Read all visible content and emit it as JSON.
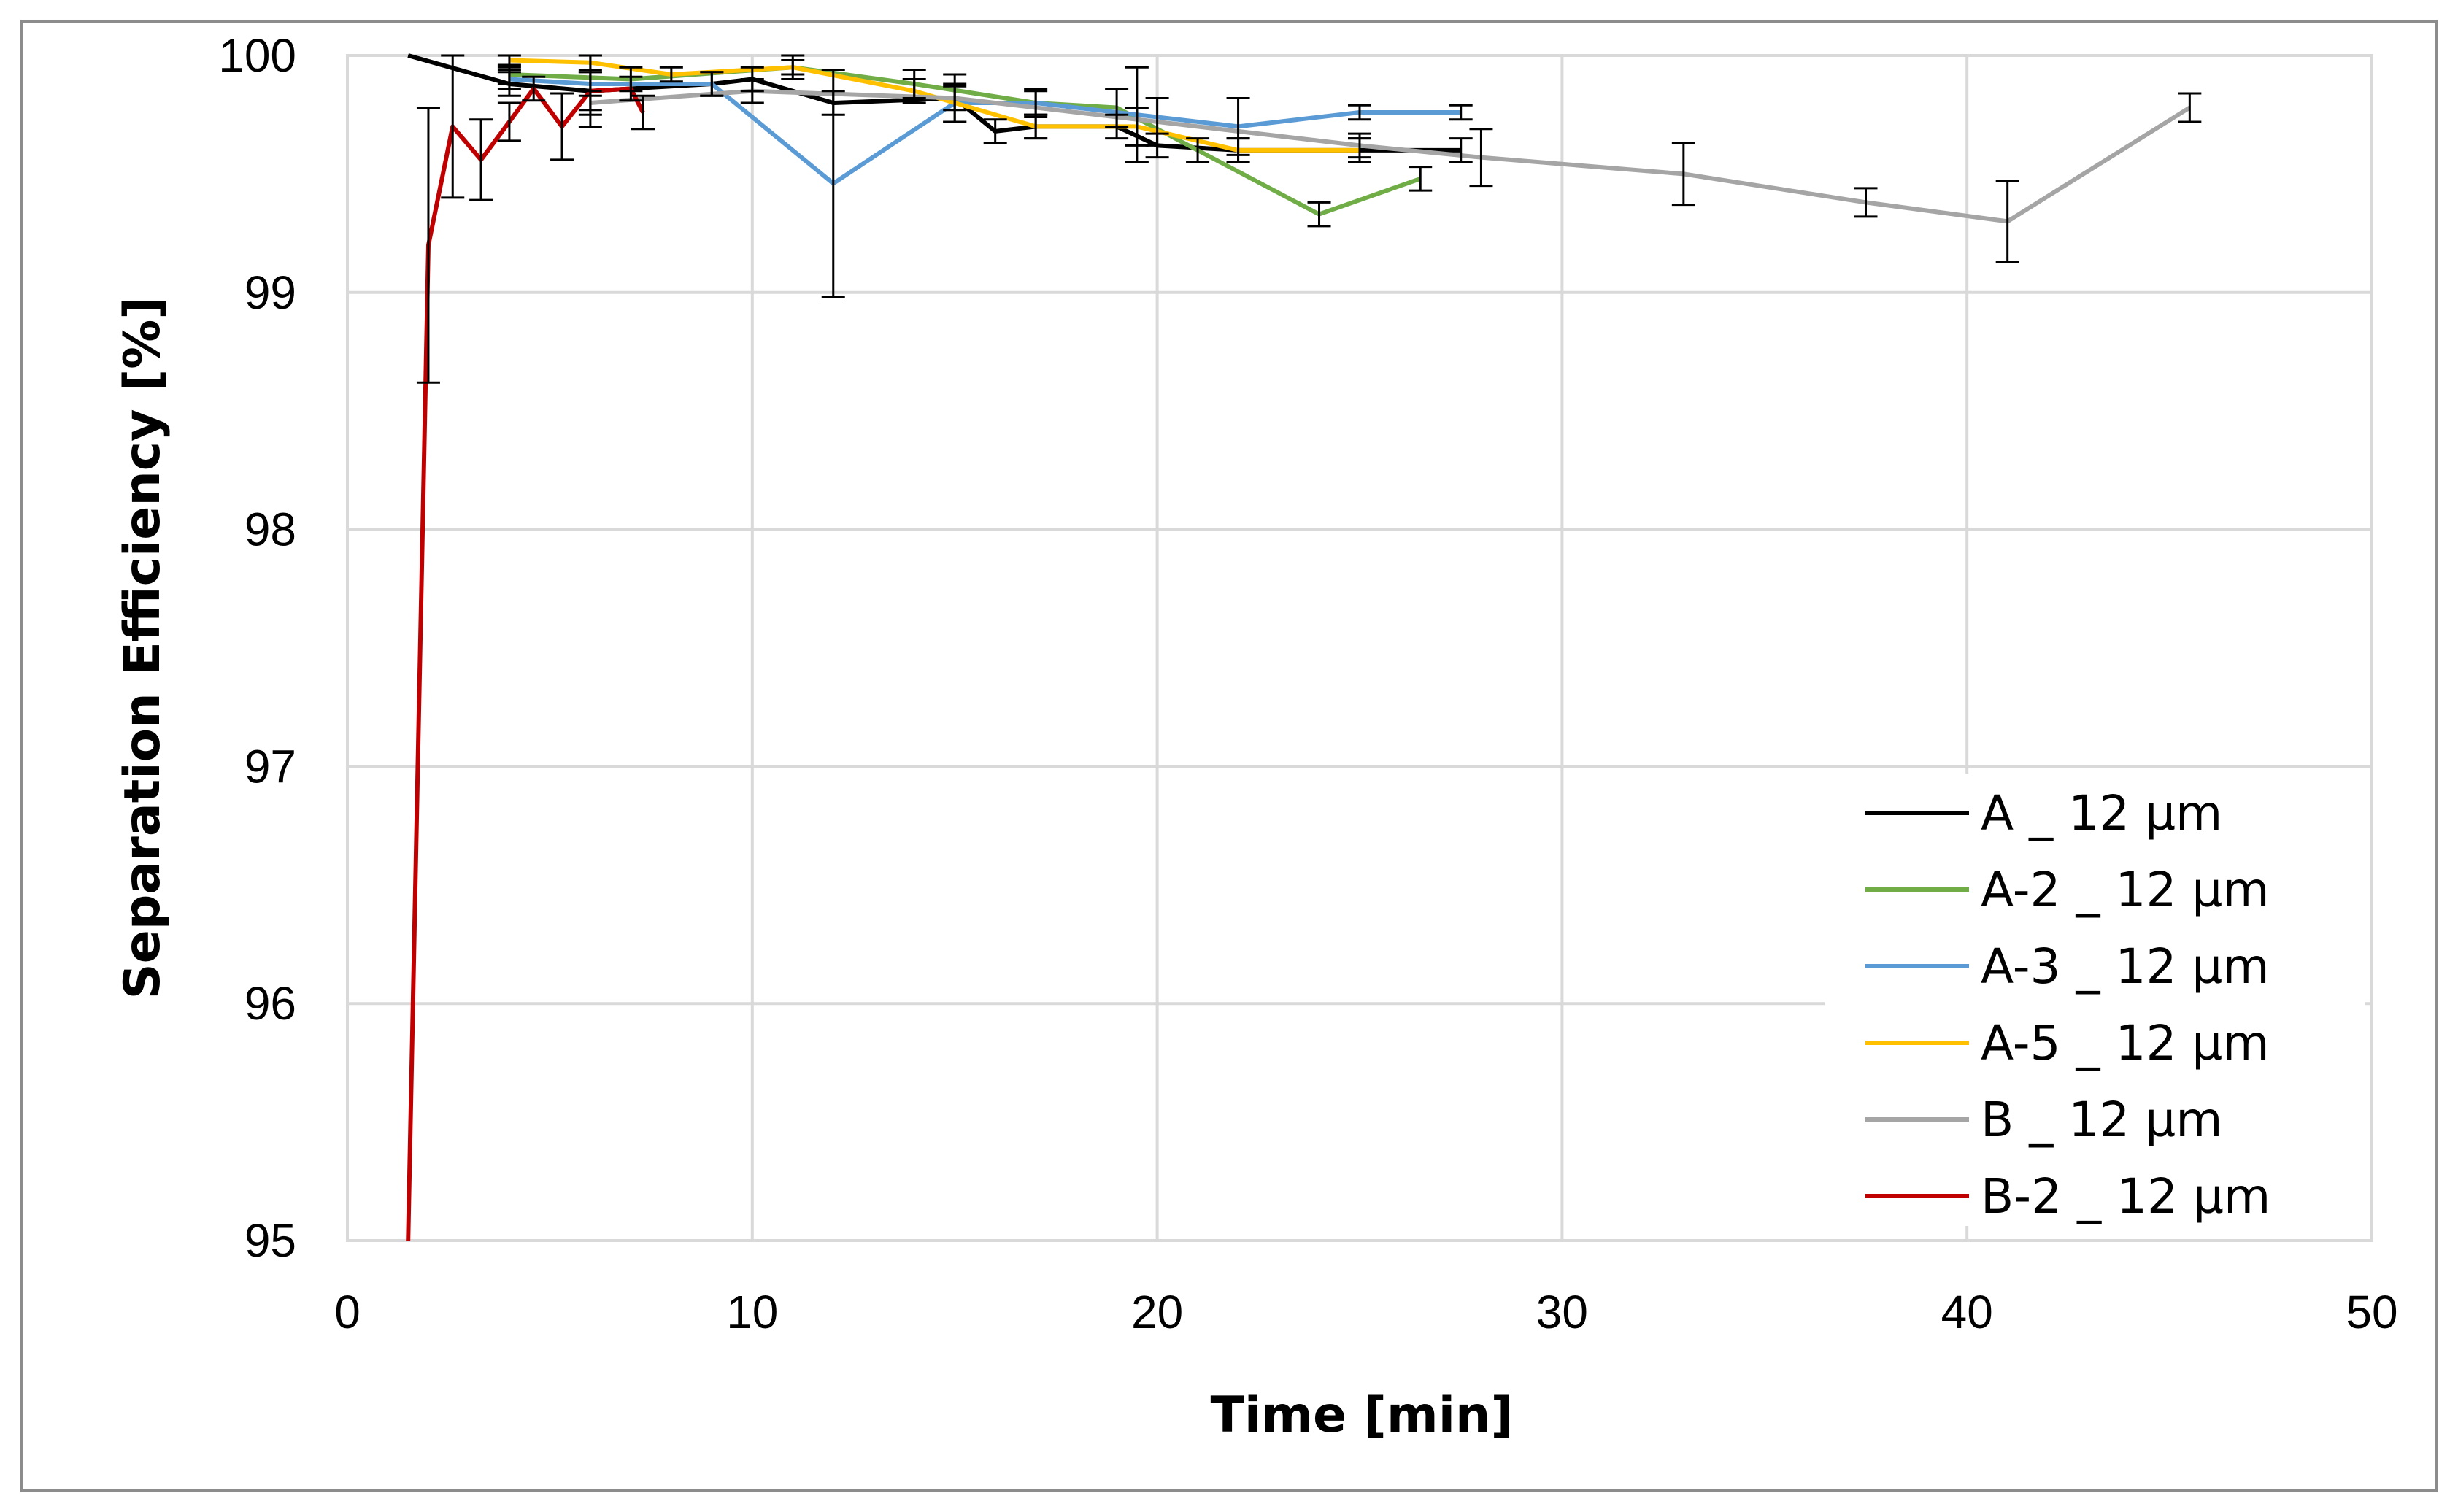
{
  "chart_data": {
    "type": "line",
    "title": "",
    "xlabel": "Time [min]",
    "ylabel": "Separation Efficiency [%]",
    "xlim": [
      0,
      50
    ],
    "ylim": [
      95,
      100
    ],
    "xticks": [
      "0",
      "10",
      "20",
      "30",
      "40",
      "50"
    ],
    "yticks": [
      "95",
      "96",
      "97",
      "98",
      "99",
      "100"
    ],
    "grid": true,
    "legend_position": "lower-right",
    "series": [
      {
        "name": "A _ 12 µm",
        "color": "#000000",
        "x": [
          1.5,
          4,
          6,
          9,
          10,
          12,
          15,
          16,
          17,
          19,
          20,
          22,
          25,
          27.5
        ],
        "y": [
          100,
          99.88,
          99.85,
          99.88,
          99.9,
          99.8,
          99.82,
          99.68,
          99.7,
          99.7,
          99.62,
          99.6,
          99.6,
          99.6
        ],
        "err": [
          null,
          0.05,
          0.08,
          0.05,
          0.05,
          0.05,
          0.1,
          0.05,
          0.05,
          0.05,
          0.05,
          0.05,
          0.05,
          0.05
        ]
      },
      {
        "name": "A-2 _ 12 µm",
        "color": "#70ad47",
        "x": [
          4,
          7,
          11,
          14,
          17,
          19,
          21,
          24,
          26.5
        ],
        "y": [
          99.92,
          99.9,
          99.95,
          99.88,
          99.8,
          99.78,
          99.6,
          99.33,
          99.48
        ],
        "err": [
          0.04,
          0.05,
          0.05,
          0.06,
          0.06,
          0.08,
          0.05,
          0.05,
          0.05
        ]
      },
      {
        "name": "A-3 _ 12 µm",
        "color": "#5b9bd5",
        "x": [
          4,
          6,
          9,
          12,
          15,
          17,
          19.5,
          22,
          25,
          27.5
        ],
        "y": [
          99.9,
          99.88,
          99.88,
          99.46,
          99.8,
          99.8,
          99.75,
          99.7,
          99.76,
          99.76
        ],
        "err": [
          0.04,
          0.05,
          0.05,
          0.48,
          0.08,
          0.05,
          0.2,
          0.12,
          0.03,
          0.03
        ]
      },
      {
        "name": "A-5 _ 12 µm",
        "color": "#ffc000",
        "x": [
          4,
          6,
          8,
          11,
          14,
          17,
          19.5,
          22,
          25
        ],
        "y": [
          99.98,
          99.97,
          99.92,
          99.95,
          99.85,
          99.7,
          99.7,
          99.6,
          99.6
        ],
        "err": [
          0.03,
          0.03,
          0.03,
          0.03,
          0.05,
          0.05,
          0.08,
          0.05,
          0.05
        ]
      },
      {
        "name": "B _ 12 µm",
        "color": "#a5a5a5",
        "x": [
          6,
          10,
          15,
          20,
          25,
          28,
          33,
          37.5,
          41,
          45.5
        ],
        "y": [
          99.8,
          99.85,
          99.82,
          99.72,
          99.62,
          99.57,
          99.5,
          99.38,
          99.3,
          99.78
        ],
        "err": [
          0.05,
          0.05,
          0.05,
          0.1,
          0.05,
          0.12,
          0.13,
          0.06,
          0.17,
          0.06
        ]
      },
      {
        "name": "B-2 _ 12 µm",
        "color": "#c00000",
        "x": [
          1.5,
          2,
          2.6,
          3.3,
          4,
          4.6,
          5.3,
          6,
          7,
          7.3
        ],
        "y": [
          95,
          99.2,
          99.7,
          99.56,
          99.72,
          99.86,
          99.7,
          99.85,
          99.86,
          99.76
        ],
        "err": [
          null,
          0.58,
          0.3,
          0.17,
          0.08,
          0.05,
          0.14,
          0.15,
          0.05,
          0.07
        ]
      }
    ]
  }
}
